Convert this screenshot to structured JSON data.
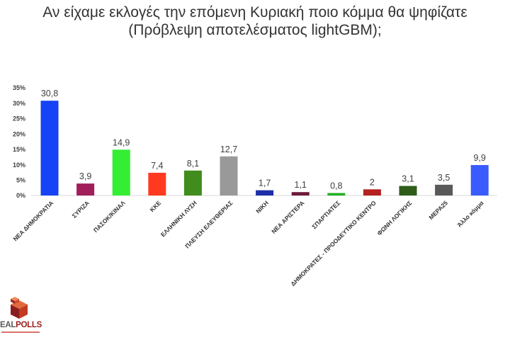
{
  "chart_data": {
    "type": "bar",
    "title": "Αν είχαμε εκλογές την επόμενη Κυριακή ποιο κόμμα θα ψηφίζατε",
    "subtitle": "(Πρόβλεψη αποτελέσματος lightGBM);",
    "ylim": [
      0,
      35
    ],
    "yticks": [
      0,
      5,
      10,
      15,
      20,
      25,
      30,
      35
    ],
    "ytick_labels": [
      "0%",
      "5%",
      "10%",
      "15%",
      "20%",
      "25%",
      "30%",
      "35%"
    ],
    "grid": false,
    "categories": [
      "ΝΕΑ ΔΗΜΟΚΡΑΤΙΑ",
      "ΣΥΡΙΖΑ",
      "ΠΑΣΟΚ/ΚΙΝΑΛ",
      "ΚΚΕ",
      "ΕΛΛΗΝΙΚΗ ΛΥΣΗ",
      "ΠΛΕΥΣΗ ΕΛΕΥΘΕΡΙΑΣ",
      "ΝΙΚΗ",
      "ΝΕΑ ΑΡΙΣΤΕΡΑ",
      "ΣΠΑΡΤΙΑΤΕΣ",
      "ΔΗΜΟΚΡΑΤΕΣ - ΠΡΟΟΔΕΥΤΙΚΟ ΚΕΝΤΡΟ",
      "ΦΩΝΗ ΛΟΓΙΚΗΣ",
      "ΜΕΡΑ25",
      "Άλλο κόμμα"
    ],
    "values": [
      30.8,
      3.9,
      14.9,
      7.4,
      8.1,
      12.7,
      1.7,
      1.1,
      0.8,
      2,
      3.1,
      3.5,
      9.9
    ],
    "value_labels": [
      "30,8",
      "3,9",
      "14,9",
      "7,4",
      "8,1",
      "12,7",
      "1,7",
      "1,1",
      "0,8",
      "2",
      "3,1",
      "3,5",
      "9,9"
    ],
    "colors": [
      "#1543f5",
      "#a01e5a",
      "#33ee33",
      "#ff3a20",
      "#408c1c",
      "#999999",
      "#1d2fa8",
      "#6e1a3a",
      "#22b022",
      "#b52020",
      "#2f5c1b",
      "#595959",
      "#3a5cff"
    ]
  },
  "logo": {
    "text_dark": "EAL",
    "text_accent": "POLLS"
  }
}
